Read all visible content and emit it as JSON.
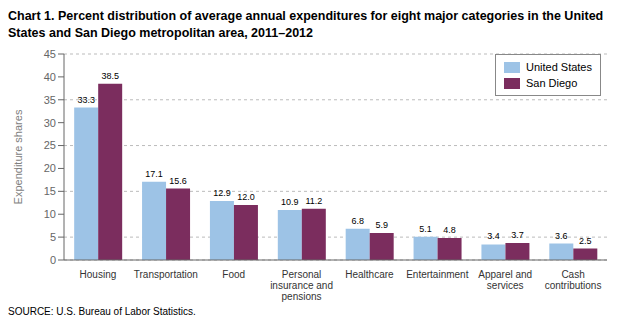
{
  "chart_data": {
    "type": "bar",
    "title": "Chart 1. Percent distribution of average annual expenditures for eight major categories in the United\nStates and San Diego metropolitan area, 2011–2012",
    "ylabel": "Expenditure shares",
    "categories": [
      "Housing",
      "Transportation",
      "Food",
      "Personal\ninsurance and\npensions",
      "Healthcare",
      "Entertainment",
      "Apparel and\nservices",
      "Cash\ncontributions"
    ],
    "series": [
      {
        "name": "United States",
        "color": "#9DC3E6",
        "values": [
          33.3,
          17.1,
          12.9,
          10.9,
          6.8,
          5.1,
          3.4,
          3.6
        ],
        "value_labels": [
          "33.3",
          "17.1",
          "12.9",
          "10.9",
          "6.8",
          "5.1",
          "3.4",
          "3.6"
        ]
      },
      {
        "name": "San Diego",
        "color": "#7B2D5E",
        "values": [
          38.5,
          15.6,
          12.0,
          11.2,
          5.9,
          4.8,
          3.7,
          2.5
        ],
        "value_labels": [
          "38.5",
          "15.6",
          "12.0",
          "11.2",
          "5.9",
          "4.8",
          "3.7",
          "2.5"
        ]
      }
    ],
    "ylim": [
      0,
      45
    ],
    "yticks": [
      0,
      5,
      10,
      15,
      20,
      25,
      30,
      35,
      40,
      45
    ],
    "grid": true,
    "legend": "upper right",
    "data_labels": true,
    "annotations": [
      "SOURCE:  U.S. Bureau of Labor Statistics."
    ]
  }
}
